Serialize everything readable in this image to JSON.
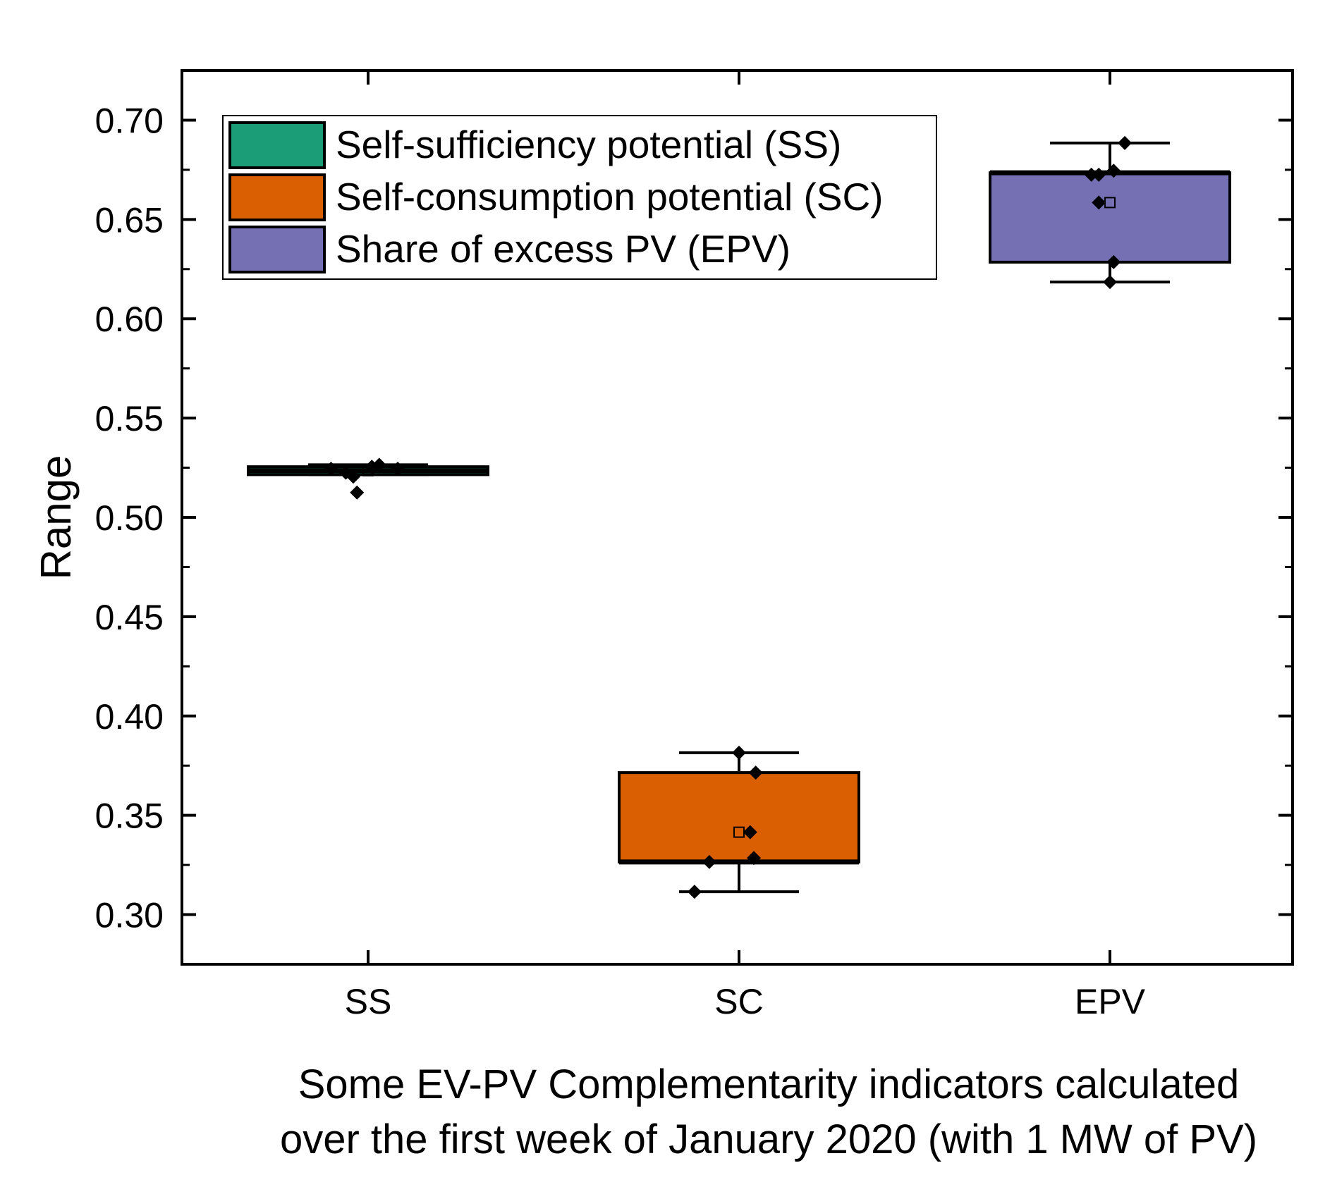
{
  "chart_data": {
    "type": "box",
    "xlabel": "Some EV-PV Complementarity indicators calculated\nover the first week of January 2020 (with 1 MW of PV)",
    "ylabel": "Range",
    "ylim": [
      0.275,
      0.725
    ],
    "yticks": [
      "0.30",
      "0.35",
      "0.40",
      "0.45",
      "0.50",
      "0.55",
      "0.60",
      "0.65",
      "0.70"
    ],
    "categories": [
      "SS",
      "SC",
      "EPV"
    ],
    "legend_position": "top-left",
    "grid": false,
    "series": [
      {
        "name": "Self-sufficiency potential (SS)",
        "category": "SS",
        "color": "#1b9e77",
        "whisker_low": 0.5215,
        "q1": 0.5215,
        "median": 0.5235,
        "q3": 0.5255,
        "whisker_high": 0.5265,
        "mean": 0.5235,
        "points": [
          {
            "x": -0.1,
            "y": 0.5245
          },
          {
            "x": -0.06,
            "y": 0.5225
          },
          {
            "x": -0.04,
            "y": 0.5205
          },
          {
            "x": -0.03,
            "y": 0.5125
          },
          {
            "x": 0.01,
            "y": 0.5255
          },
          {
            "x": 0.03,
            "y": 0.5265
          },
          {
            "x": 0.08,
            "y": 0.5245
          }
        ]
      },
      {
        "name": "Self-consumption potential (SC)",
        "category": "SC",
        "color": "#d95f02",
        "whisker_low": 0.3115,
        "q1": 0.3265,
        "median": 0.3265,
        "q3": 0.3715,
        "whisker_high": 0.3815,
        "mean": 0.3415,
        "points": [
          {
            "x": -0.12,
            "y": 0.3115
          },
          {
            "x": -0.08,
            "y": 0.3265
          },
          {
            "x": 0.0,
            "y": 0.3815
          },
          {
            "x": 0.03,
            "y": 0.3415
          },
          {
            "x": 0.04,
            "y": 0.3285
          },
          {
            "x": 0.045,
            "y": 0.3715
          }
        ]
      },
      {
        "name": "Share of excess PV (EPV)",
        "category": "EPV",
        "color": "#7570b3",
        "whisker_low": 0.6185,
        "q1": 0.6285,
        "median": 0.6735,
        "q3": 0.6735,
        "whisker_high": 0.6885,
        "mean": 0.6585,
        "points": [
          {
            "x": -0.05,
            "y": 0.6725
          },
          {
            "x": -0.03,
            "y": 0.6725
          },
          {
            "x": -0.03,
            "y": 0.6585
          },
          {
            "x": 0.0,
            "y": 0.6185
          },
          {
            "x": 0.01,
            "y": 0.6285
          },
          {
            "x": 0.01,
            "y": 0.6745
          },
          {
            "x": 0.04,
            "y": 0.6885
          }
        ]
      }
    ]
  }
}
